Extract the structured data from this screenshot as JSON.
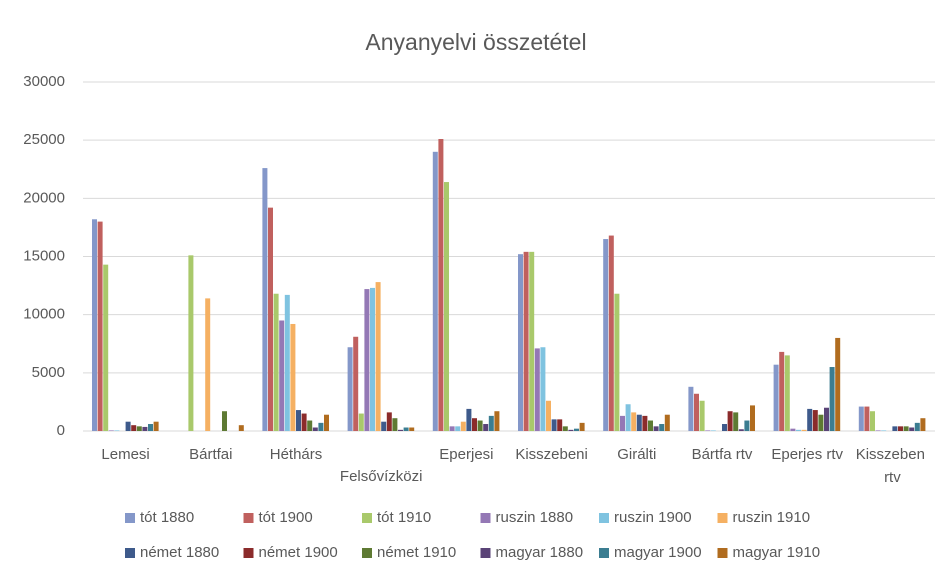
{
  "chart_data": {
    "type": "bar",
    "title": "Anyanyelvi összetétel",
    "categories": [
      "Lemesi",
      "Bártfai",
      "Héthárs",
      "Felsővízközi",
      "Eperjesi",
      "Kisszebeni",
      "Girálti",
      "Bártfa rtv",
      "Eperjes rtv",
      "Kisszeben rtv"
    ],
    "series": [
      {
        "name": "tót 1880",
        "color": "#8497c9",
        "values": [
          18200,
          0,
          22600,
          7200,
          24000,
          15200,
          16500,
          3800,
          5700,
          2100
        ]
      },
      {
        "name": "tót 1900",
        "color": "#c0605e",
        "values": [
          18000,
          0,
          19200,
          8100,
          25100,
          15400,
          16800,
          3200,
          6800,
          2100
        ]
      },
      {
        "name": "tót 1910",
        "color": "#a9c96b",
        "values": [
          14300,
          15100,
          11800,
          1500,
          21400,
          15400,
          11800,
          2600,
          6500,
          1700
        ]
      },
      {
        "name": "ruszin 1880",
        "color": "#9478b5",
        "values": [
          50,
          0,
          9500,
          12200,
          400,
          7100,
          1300,
          50,
          200,
          50
        ]
      },
      {
        "name": "ruszin 1900",
        "color": "#7fc3e0",
        "values": [
          50,
          0,
          11700,
          12300,
          400,
          7200,
          2300,
          50,
          100,
          50
        ]
      },
      {
        "name": "ruszin 1910",
        "color": "#f5b062",
        "values": [
          0,
          11400,
          9200,
          12800,
          800,
          2600,
          1600,
          0,
          100,
          0
        ]
      },
      {
        "name": "német 1880",
        "color": "#3e5a8b",
        "values": [
          800,
          0,
          1800,
          800,
          1900,
          1000,
          1400,
          600,
          1900,
          400
        ]
      },
      {
        "name": "német 1900",
        "color": "#8b2b2b",
        "values": [
          500,
          0,
          1500,
          1600,
          1100,
          1000,
          1300,
          1700,
          1800,
          400
        ]
      },
      {
        "name": "német 1910",
        "color": "#5e7a33",
        "values": [
          400,
          1700,
          900,
          1100,
          900,
          400,
          900,
          1600,
          1400,
          400
        ]
      },
      {
        "name": "magyar 1880",
        "color": "#5a4377",
        "values": [
          350,
          0,
          300,
          100,
          600,
          100,
          400,
          150,
          2000,
          300
        ]
      },
      {
        "name": "magyar 1900",
        "color": "#3b7d91",
        "values": [
          600,
          0,
          700,
          300,
          1300,
          200,
          600,
          900,
          5500,
          700
        ]
      },
      {
        "name": "magyar 1910",
        "color": "#b06c1f",
        "values": [
          800,
          500,
          1400,
          300,
          1700,
          700,
          1400,
          2200,
          8000,
          1100
        ]
      }
    ],
    "ylim": [
      0,
      30000
    ],
    "yticks": [
      0,
      5000,
      10000,
      15000,
      20000,
      25000,
      30000
    ],
    "grid": true,
    "legend": "bottom"
  }
}
